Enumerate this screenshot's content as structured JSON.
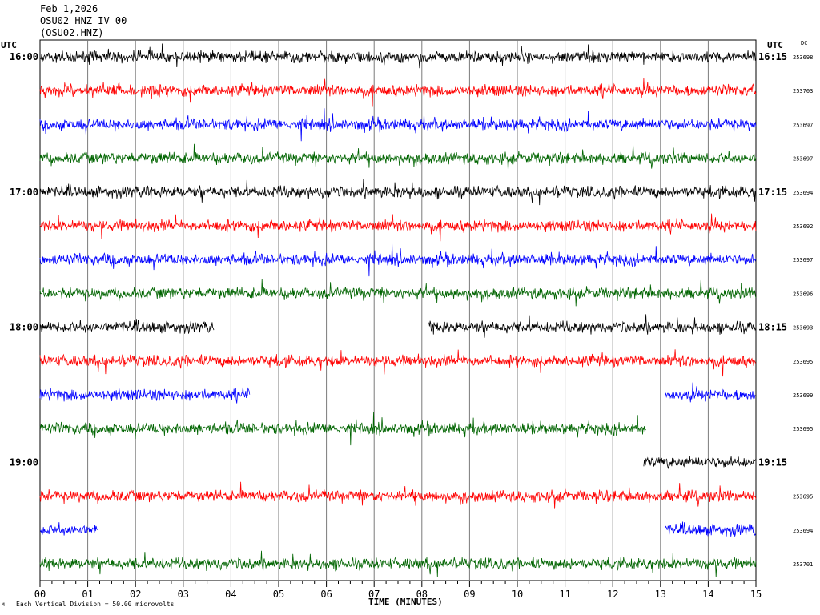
{
  "header": {
    "date": "Feb 1,2026",
    "station_line": "OSU02 HNZ IV 00",
    "station_code": "(OSU02.HNZ)"
  },
  "left_axis_label": "UTC",
  "right_axis_label": "UTC",
  "right_column_header": "DC",
  "footer": {
    "scale_note": "Each Vertical Division =    50.00 microvolts",
    "corner_mark": "M"
  },
  "chart_data": {
    "type": "line",
    "title": "",
    "xlabel": "TIME (MINUTES)",
    "ylabel": "",
    "xlim": [
      0,
      15
    ],
    "x_ticks": [
      "00",
      "01",
      "02",
      "03",
      "04",
      "05",
      "06",
      "07",
      "08",
      "09",
      "10",
      "11",
      "12",
      "13",
      "14",
      "15"
    ],
    "grid": true,
    "colors": [
      "#000000",
      "#ff0000",
      "#0000ff",
      "#006400"
    ],
    "series": [
      {
        "start": "16:00",
        "end": "16:15",
        "dc": "253698",
        "segments": [
          [
            0,
            15
          ]
        ]
      },
      {
        "start": "",
        "end": "",
        "dc": "253703",
        "segments": [
          [
            0,
            15
          ]
        ]
      },
      {
        "start": "",
        "end": "",
        "dc": "253697",
        "segments": [
          [
            0,
            15
          ]
        ]
      },
      {
        "start": "",
        "end": "",
        "dc": "253697",
        "segments": [
          [
            0,
            15
          ]
        ]
      },
      {
        "start": "17:00",
        "end": "17:15",
        "dc": "253694",
        "segments": [
          [
            0,
            15
          ]
        ]
      },
      {
        "start": "",
        "end": "",
        "dc": "253692",
        "segments": [
          [
            0,
            15
          ]
        ]
      },
      {
        "start": "",
        "end": "",
        "dc": "253697",
        "segments": [
          [
            0,
            15
          ]
        ]
      },
      {
        "start": "",
        "end": "",
        "dc": "253696",
        "segments": [
          [
            0,
            15
          ]
        ]
      },
      {
        "start": "18:00",
        "end": "18:15",
        "dc": "253693",
        "segments": [
          [
            0,
            3.65
          ],
          [
            8.15,
            15
          ]
        ]
      },
      {
        "start": "",
        "end": "",
        "dc": "253695",
        "segments": [
          [
            0,
            15
          ]
        ]
      },
      {
        "start": "",
        "end": "",
        "dc": "253699",
        "segments": [
          [
            0,
            4.4
          ],
          [
            13.1,
            15
          ]
        ]
      },
      {
        "start": "",
        "end": "",
        "dc": "253695",
        "segments": [
          [
            0,
            12.7
          ]
        ]
      },
      {
        "start": "19:00",
        "end": "19:15",
        "dc": "",
        "segments": [
          [
            12.65,
            15
          ]
        ]
      },
      {
        "start": "",
        "end": "",
        "dc": "253695",
        "segments": [
          [
            0,
            15
          ]
        ]
      },
      {
        "start": "",
        "end": "",
        "dc": "253694",
        "segments": [
          [
            0,
            1.2
          ],
          [
            13.1,
            15
          ]
        ]
      },
      {
        "start": "",
        "end": "",
        "dc": "253701",
        "segments": [
          [
            0,
            15
          ]
        ]
      }
    ]
  }
}
